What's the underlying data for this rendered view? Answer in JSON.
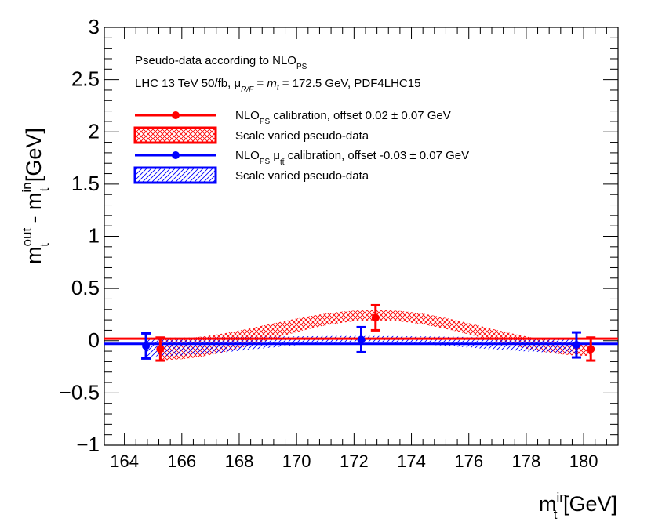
{
  "chart_data": {
    "type": "scatter",
    "x": [
      165,
      172.5,
      180
    ],
    "xlim": [
      163.3,
      181.2
    ],
    "ylim": [
      -1,
      3
    ],
    "x_ticks": [
      164,
      166,
      168,
      170,
      172,
      174,
      176,
      178,
      180
    ],
    "y_ticks": [
      -1,
      -0.5,
      0,
      0.5,
      1,
      1.5,
      2,
      2.5,
      3
    ],
    "x_tick_labels": [
      "164",
      "166",
      "168",
      "170",
      "172",
      "174",
      "176",
      "178",
      "180"
    ],
    "y_tick_labels": [
      "−1",
      "−0.5",
      "0",
      "0.5",
      "1",
      "1.5",
      "2",
      "2.5",
      "3"
    ],
    "xlabel": {
      "main": "m",
      "sup": "in",
      "sub": "t",
      "unit": " [GeV]"
    },
    "ylabel": {
      "m1": "m",
      "sup1": "out",
      "sub1": "t",
      "mid": " - m",
      "sup2": "in",
      "sub2": "t",
      "unit": " [GeV]"
    },
    "annotations": {
      "line1_main": "Pseudo-data according to NLO",
      "line1_sub": "PS",
      "line2_a": "LHC 13 TeV 50/fb, μ",
      "line2_sub": "R/F",
      "line2_b": " = ",
      "line2_m": "m",
      "line2_t": "t",
      "line2_c": " = 172.5 GeV, PDF4LHC15"
    },
    "series": [
      {
        "name": "NLO_PS calibration",
        "color": "#ff0000",
        "x_offset": 0.25,
        "values": [
          -0.08,
          0.22,
          -0.08
        ],
        "errors": [
          0.11,
          0.12,
          0.11
        ],
        "calibration_offset": 0.02,
        "band_center": [
          -0.085,
          0.245,
          -0.085
        ],
        "band_halfwidth": [
          0.1,
          0.05,
          0.06
        ]
      },
      {
        "name": "NLO_PS mu_tt calibration",
        "color": "#0000ff",
        "x_offset": -0.25,
        "values": [
          -0.05,
          0.01,
          -0.04
        ],
        "errors": [
          0.12,
          0.12,
          0.12
        ],
        "calibration_offset": -0.03,
        "band_center": [
          -0.06,
          0.015,
          -0.045
        ],
        "band_halfwidth": [
          0.09,
          0.03,
          0.07
        ]
      }
    ],
    "legend": {
      "position": "top-left",
      "entries": [
        {
          "main": "NLO",
          "sub": "PS",
          "mu": "",
          "mu_sub": "",
          "rest": " calibration, offset 0.02 ± 0.07 GeV"
        },
        {
          "main": "Scale varied pseudo-data",
          "sub": "",
          "mu": "",
          "mu_sub": "",
          "rest": ""
        },
        {
          "main": "NLO",
          "sub": "PS",
          "mu": " μ",
          "mu_sub": "tt̄",
          "rest": " calibration, offset -0.03 ± 0.07 GeV"
        },
        {
          "main": "Scale varied pseudo-data",
          "sub": "",
          "mu": "",
          "mu_sub": "",
          "rest": ""
        }
      ]
    }
  }
}
